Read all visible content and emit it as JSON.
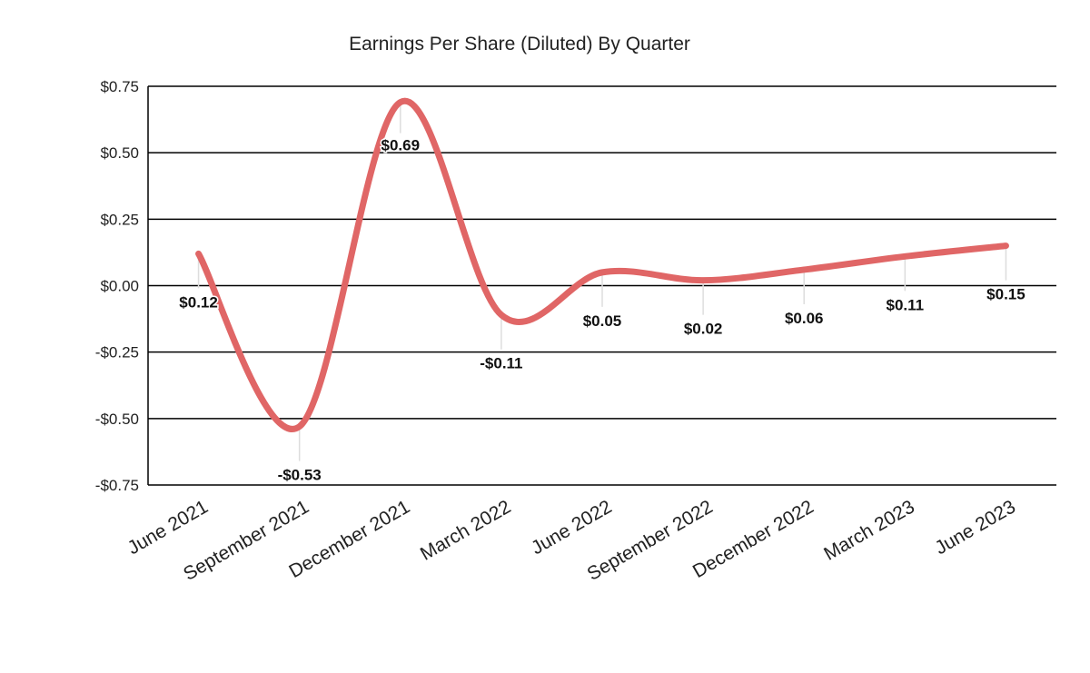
{
  "chart_data": {
    "type": "line",
    "title": "Earnings Per Share (Diluted) By Quarter",
    "xlabel": "",
    "ylabel": "",
    "categories": [
      "June 2021",
      "September 2021",
      "December 2021",
      "March 2022",
      "June 2022",
      "September 2022",
      "December 2022",
      "March 2023",
      "June 2023"
    ],
    "series": [
      {
        "values": [
          0.12,
          -0.53,
          0.69,
          -0.11,
          0.05,
          0.02,
          0.06,
          0.11,
          0.15
        ],
        "labels": [
          "$0.12",
          "-$0.53",
          "$0.69",
          "-$0.11",
          "$0.05",
          "$0.02",
          "$0.06",
          "$0.11",
          "$0.15"
        ],
        "color": "#e06666"
      }
    ],
    "ylim": [
      -0.75,
      0.75
    ],
    "yticks": [
      0.75,
      0.5,
      0.25,
      0,
      -0.25,
      -0.5,
      -0.75
    ],
    "ytick_labels": [
      "$0.75",
      "$0.50",
      "$0.25",
      "$0.00",
      "-$0.25",
      "-$0.50",
      "-$0.75"
    ],
    "grid": true,
    "smooth": true,
    "legend": "none"
  }
}
